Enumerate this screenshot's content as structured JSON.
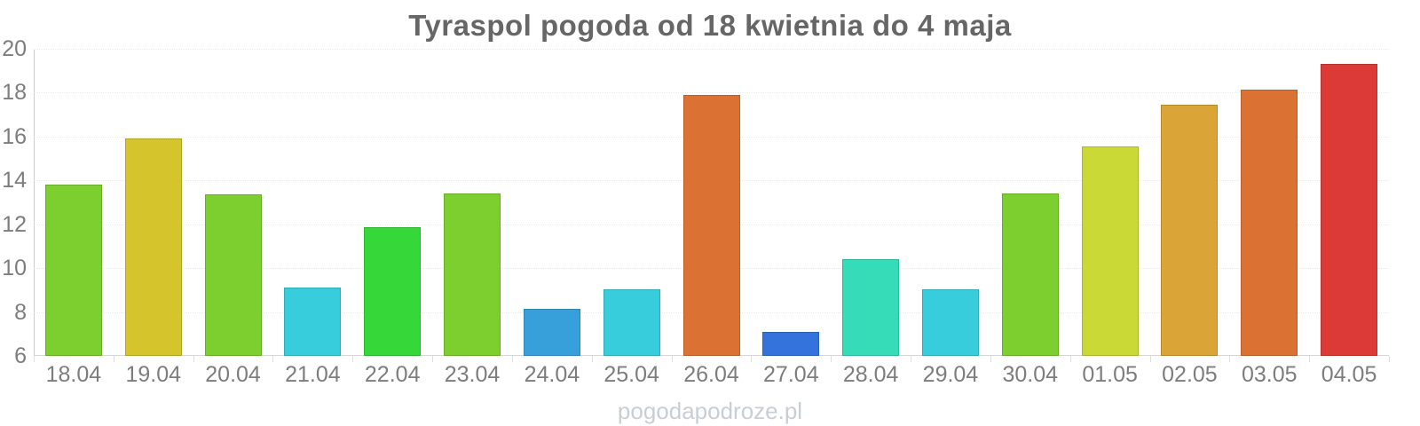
{
  "chart_data": {
    "type": "bar",
    "title": "Tyraspol pogoda od 18 kwietnia do 4 maja",
    "categories": [
      "18.04",
      "19.04",
      "20.04",
      "21.04",
      "22.04",
      "23.04",
      "24.04",
      "25.04",
      "26.04",
      "27.04",
      "28.04",
      "29.04",
      "30.04",
      "01.05",
      "02.05",
      "03.05",
      "04.05"
    ],
    "values": [
      13.8,
      15.9,
      13.35,
      9.1,
      11.85,
      13.4,
      8.15,
      9.05,
      17.9,
      7.1,
      10.4,
      9.05,
      13.4,
      15.55,
      17.45,
      18.15,
      19.3
    ],
    "bar_colors": [
      "#7DCE2F",
      "#D5C42C",
      "#7DCE2F",
      "#38CDDC",
      "#36D839",
      "#7DCE2F",
      "#379FD9",
      "#38CDDC",
      "#DB7233",
      "#3473DB",
      "#36DCB7",
      "#38CDDC",
      "#7DCE2F",
      "#CBD936",
      "#DBA436",
      "#DB7233",
      "#DB3A36"
    ],
    "xlabel": "",
    "ylabel": "",
    "ylim": [
      6,
      20
    ],
    "yticks": [
      6,
      8,
      10,
      12,
      14,
      16,
      18,
      20
    ],
    "grid": "horizontal-faint-dotted",
    "legend": "none",
    "watermark": "pogodapodroze.pl",
    "colors": {
      "title_text": "#666666",
      "axis_label_text": "#7d7d7d",
      "axis_line": "#cccccc",
      "gridline": "#ebebeb",
      "watermark_text": "#c9ced3",
      "background": "#ffffff"
    }
  }
}
